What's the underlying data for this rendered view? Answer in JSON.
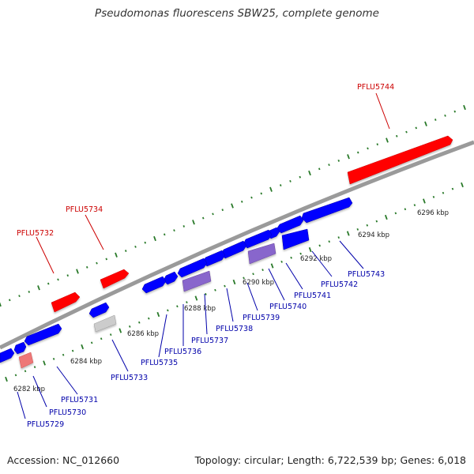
{
  "header": {
    "title": "Pseudomonas fluorescens SBW25, complete genome"
  },
  "footer": {
    "accession": "Accession: NC_012660",
    "summary": "Topology: circular; Length: 6,722,539 bp; Genes: 6,018"
  },
  "colors": {
    "forward_gene": "#ff0000",
    "reverse_gene": "#0000ff",
    "reverse_pale": "#8866cc",
    "pseudo_gene": "#cccccc",
    "forward_pale": "#ee7777",
    "backbone": "#888888",
    "tick_mark": "#2a7a2a",
    "label_forward": "#cc0000",
    "label_reverse": "#0000aa"
  },
  "kbp_labels": [
    "6282 kbp",
    "6284 kbp",
    "6286 kbp",
    "6288 kbp",
    "6290 kbp",
    "6292 kbp",
    "6294 kbp",
    "6296 kbp"
  ],
  "forward_genes": [
    {
      "id": "PFLU5732",
      "label": "PFLU5732"
    },
    {
      "id": "PFLU5734",
      "label": "PFLU5734"
    },
    {
      "id": "PFLU5744",
      "label": "PFLU5744"
    }
  ],
  "reverse_genes": [
    {
      "id": "PFLU5729",
      "label": "PFLU5729"
    },
    {
      "id": "PFLU5730",
      "label": "PFLU5730"
    },
    {
      "id": "PFLU5731",
      "label": "PFLU5731"
    },
    {
      "id": "PFLU5733",
      "label": "PFLU5733"
    },
    {
      "id": "PFLU5735",
      "label": "PFLU5735"
    },
    {
      "id": "PFLU5736",
      "label": "PFLU5736"
    },
    {
      "id": "PFLU5737",
      "label": "PFLU5737"
    },
    {
      "id": "PFLU5738",
      "label": "PFLU5738"
    },
    {
      "id": "PFLU5739",
      "label": "PFLU5739"
    },
    {
      "id": "PFLU5740",
      "label": "PFLU5740"
    },
    {
      "id": "PFLU5741",
      "label": "PFLU5741"
    },
    {
      "id": "PFLU5742",
      "label": "PFLU5742"
    },
    {
      "id": "PFLU5743",
      "label": "PFLU5743"
    }
  ]
}
